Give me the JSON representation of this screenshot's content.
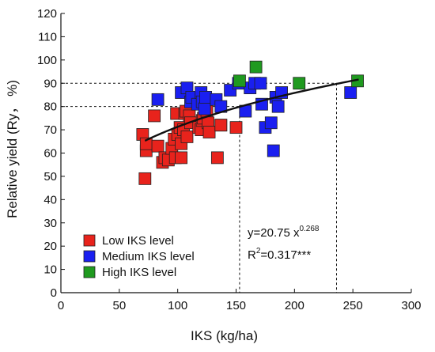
{
  "chart_data": {
    "type": "scatter",
    "xlabel": "IKS (kg/ha)",
    "ylabel": "Relative yield (Ry， %)",
    "xlim": [
      0,
      300
    ],
    "ylim": [
      0,
      120
    ],
    "xticks": [
      0,
      50,
      100,
      150,
      200,
      250,
      300
    ],
    "yticks": [
      0,
      10,
      20,
      30,
      40,
      50,
      60,
      70,
      80,
      90,
      100,
      110,
      120
    ],
    "grid": false,
    "legend_position": "bottom-left",
    "series": [
      {
        "name": "Low  IKS level",
        "color": "#e8231c",
        "points": [
          [
            70,
            68
          ],
          [
            72,
            49
          ],
          [
            73,
            61
          ],
          [
            73,
            64
          ],
          [
            80,
            76
          ],
          [
            83,
            63
          ],
          [
            87,
            56
          ],
          [
            89,
            58
          ],
          [
            92,
            57
          ],
          [
            95,
            62
          ],
          [
            97,
            66
          ],
          [
            98,
            58
          ],
          [
            99,
            77
          ],
          [
            100,
            68
          ],
          [
            102,
            71
          ],
          [
            103,
            64
          ],
          [
            103,
            58
          ],
          [
            105,
            70
          ],
          [
            106,
            77
          ],
          [
            107,
            78
          ],
          [
            108,
            67
          ],
          [
            110,
            76
          ],
          [
            111,
            73
          ],
          [
            118,
            71
          ],
          [
            120,
            70
          ],
          [
            121,
            74
          ],
          [
            122,
            75
          ],
          [
            125,
            78
          ],
          [
            126,
            73
          ],
          [
            127,
            69
          ],
          [
            134,
            58
          ],
          [
            137,
            72
          ],
          [
            137,
            72
          ],
          [
            150,
            71
          ]
        ]
      },
      {
        "name": "Medium  IKS level",
        "color": "#1a1ff0",
        "points": [
          [
            83,
            83
          ],
          [
            103,
            86
          ],
          [
            108,
            88
          ],
          [
            111,
            82
          ],
          [
            112,
            84
          ],
          [
            117,
            81
          ],
          [
            120,
            86
          ],
          [
            121,
            82
          ],
          [
            123,
            79
          ],
          [
            124,
            84
          ],
          [
            133,
            83
          ],
          [
            137,
            80
          ],
          [
            145,
            87
          ],
          [
            152,
            90
          ],
          [
            158,
            78
          ],
          [
            162,
            88
          ],
          [
            166,
            90
          ],
          [
            171,
            90
          ],
          [
            172,
            81
          ],
          [
            175,
            71
          ],
          [
            180,
            73
          ],
          [
            182,
            61
          ],
          [
            184,
            84
          ],
          [
            186,
            80
          ],
          [
            189,
            86
          ],
          [
            248,
            86
          ]
        ]
      },
      {
        "name": "High  IKS level",
        "color": "#1f9a1f",
        "points": [
          [
            153,
            91
          ],
          [
            167,
            97
          ],
          [
            204,
            90
          ],
          [
            254,
            91
          ]
        ]
      }
    ],
    "fit": {
      "equation": "y=20.75 x",
      "exponent": "0.268",
      "r2_prefix": "R",
      "r2_exp": "2",
      "r2_value": "=0.317***",
      "a": 20.75,
      "b": 0.268,
      "x_from": 72,
      "x_to": 255
    },
    "reference_lines": {
      "y_values": [
        80,
        90
      ],
      "x_values": [
        153,
        236
      ]
    }
  }
}
